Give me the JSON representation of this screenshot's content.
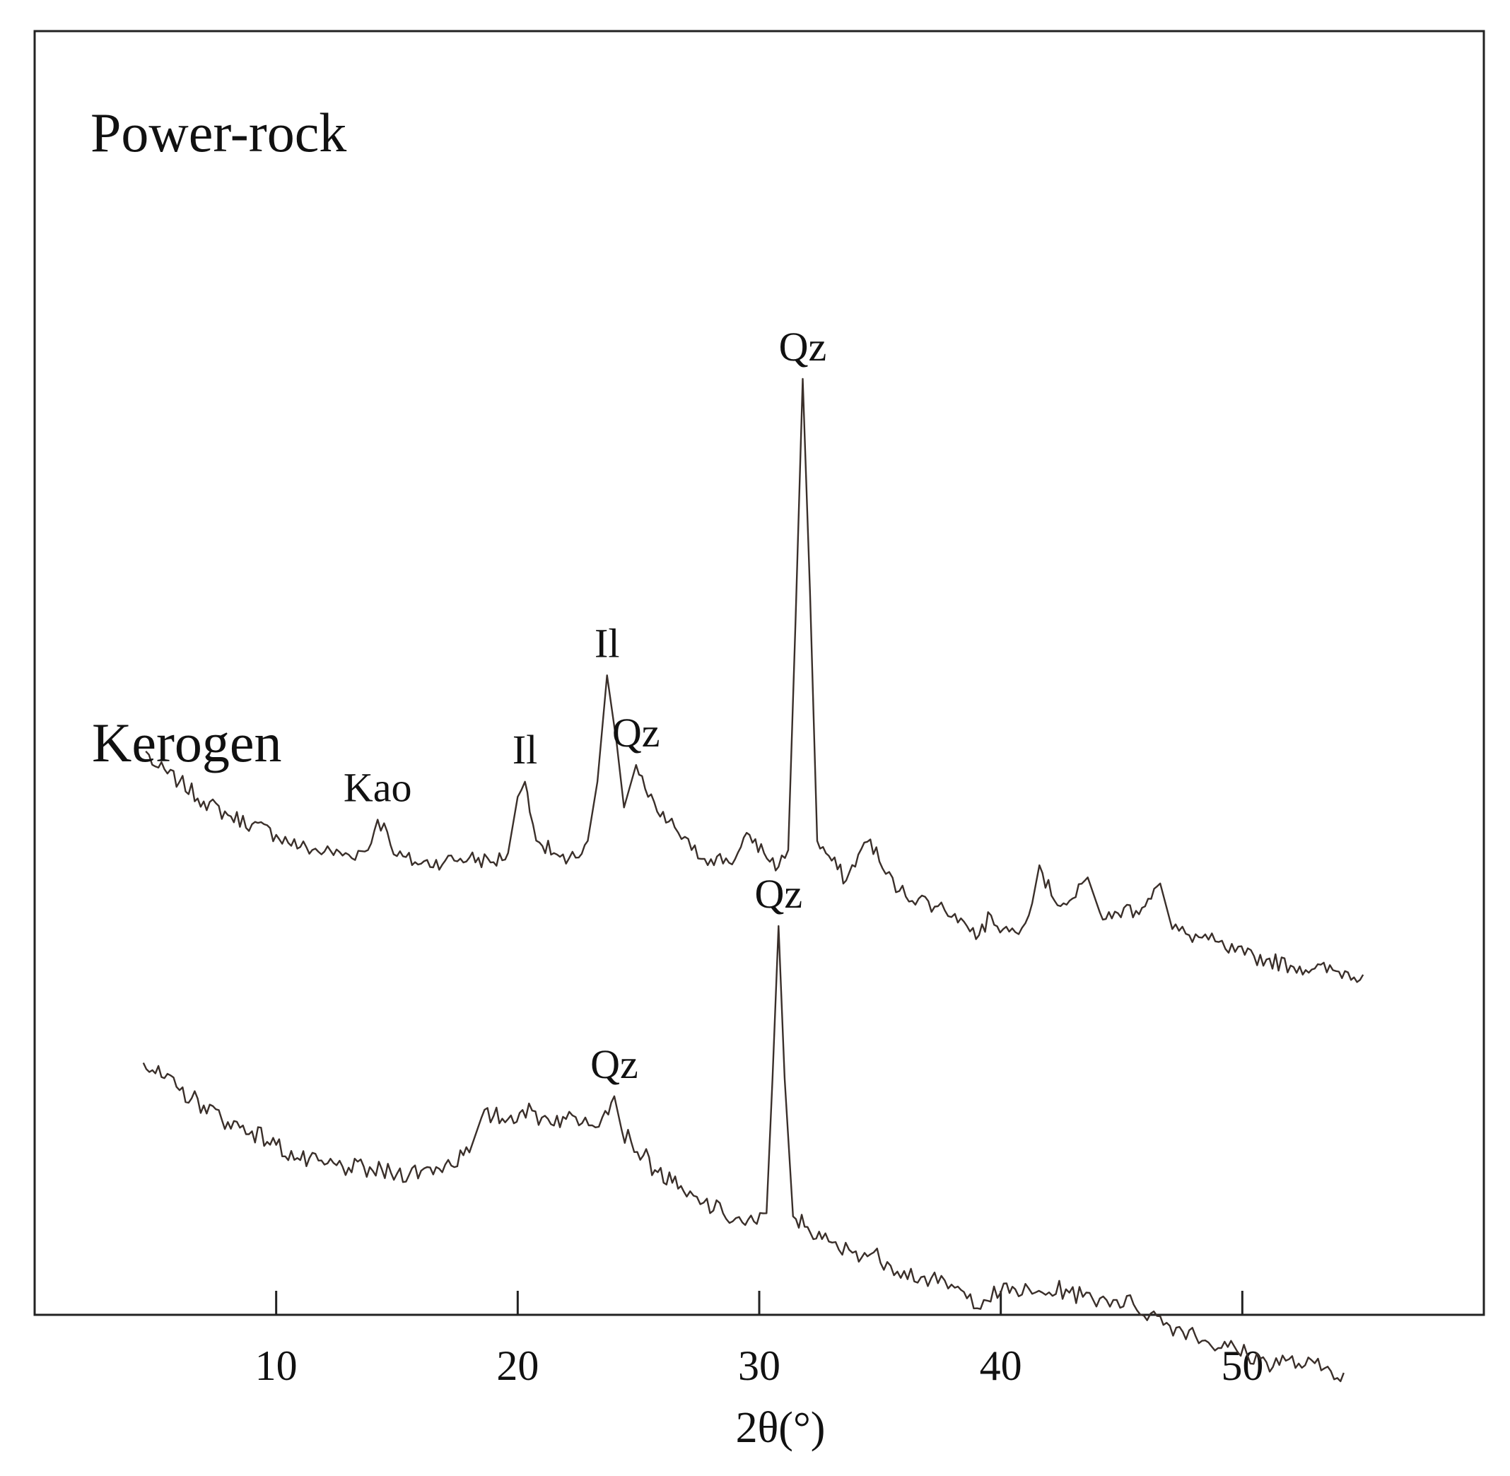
{
  "chart_data": {
    "type": "line",
    "title": "",
    "xlabel": "2θ(°)",
    "ylabel": "",
    "xlim": [
      0,
      60
    ],
    "x_ticks": [
      10,
      20,
      30,
      40,
      50
    ],
    "x_tick_labels": [
      "10",
      "20",
      "30",
      "40",
      "50"
    ],
    "y_axis_visible": false,
    "grid": false,
    "legend": "none",
    "line_color": "#3a2f2a",
    "series": [
      {
        "name": "Power-rock",
        "anchors": [
          [
            4.6,
            31.5
          ],
          [
            5.0,
            30.5
          ],
          [
            6.0,
            29.5
          ],
          [
            7.0,
            28.2
          ],
          [
            8.0,
            27.3
          ],
          [
            9.0,
            26.7
          ],
          [
            10.0,
            26.0
          ],
          [
            11.0,
            25.2
          ],
          [
            12.0,
            24.9
          ],
          [
            13.0,
            24.7
          ],
          [
            13.8,
            25.0
          ],
          [
            14.2,
            27.0
          ],
          [
            14.6,
            26.2
          ],
          [
            15.0,
            24.6
          ],
          [
            16.0,
            24.1
          ],
          [
            17.0,
            24.3
          ],
          [
            18.0,
            24.5
          ],
          [
            19.0,
            24.2
          ],
          [
            19.6,
            24.8
          ],
          [
            20.0,
            28.5
          ],
          [
            20.3,
            29.5
          ],
          [
            20.5,
            27.5
          ],
          [
            20.9,
            25.5
          ],
          [
            21.5,
            24.8
          ],
          [
            22.0,
            24.1
          ],
          [
            22.4,
            24.5
          ],
          [
            22.9,
            25.6
          ],
          [
            23.3,
            29.5
          ],
          [
            23.7,
            36.5
          ],
          [
            24.1,
            32.0
          ],
          [
            24.4,
            27.8
          ],
          [
            24.9,
            30.6
          ],
          [
            25.4,
            28.5
          ],
          [
            25.9,
            27.2
          ],
          [
            26.5,
            26.5
          ],
          [
            27.2,
            25.0
          ],
          [
            28.0,
            24.4
          ],
          [
            29.0,
            24.4
          ],
          [
            29.6,
            26.0
          ],
          [
            30.2,
            24.8
          ],
          [
            30.8,
            23.9
          ],
          [
            31.2,
            25.0
          ],
          [
            31.5,
            40.0
          ],
          [
            31.8,
            56.0
          ],
          [
            32.1,
            42.0
          ],
          [
            32.4,
            25.6
          ],
          [
            33.0,
            24.3
          ],
          [
            33.6,
            23.0
          ],
          [
            34.1,
            24.7
          ],
          [
            34.6,
            25.7
          ],
          [
            35.1,
            23.8
          ],
          [
            35.8,
            22.3
          ],
          [
            36.6,
            21.8
          ],
          [
            37.4,
            21.3
          ],
          [
            38.1,
            20.8
          ],
          [
            38.6,
            20.0
          ],
          [
            39.1,
            19.4
          ],
          [
            39.6,
            20.7
          ],
          [
            40.1,
            19.8
          ],
          [
            40.6,
            19.6
          ],
          [
            41.3,
            21.5
          ],
          [
            41.6,
            24.0
          ],
          [
            42.1,
            22.0
          ],
          [
            42.6,
            21.5
          ],
          [
            43.1,
            21.9
          ],
          [
            43.6,
            23.2
          ],
          [
            44.1,
            20.9
          ],
          [
            44.6,
            20.5
          ],
          [
            45.1,
            21.2
          ],
          [
            45.6,
            21.0
          ],
          [
            46.1,
            21.8
          ],
          [
            46.6,
            22.8
          ],
          [
            47.1,
            19.8
          ],
          [
            47.8,
            19.4
          ],
          [
            48.6,
            19.1
          ],
          [
            49.3,
            18.5
          ],
          [
            50.1,
            18.1
          ],
          [
            51.0,
            17.8
          ],
          [
            52.0,
            17.4
          ],
          [
            53.0,
            17.2
          ],
          [
            54.0,
            17.0
          ],
          [
            55.0,
            16.8
          ]
        ],
        "peak_labels": [
          {
            "x": 14.2,
            "label": "Kao"
          },
          {
            "x": 20.3,
            "label": "Il"
          },
          {
            "x": 23.7,
            "label": "Il"
          },
          {
            "x": 24.9,
            "label": "Qz"
          },
          {
            "x": 31.8,
            "label": "Qz"
          }
        ]
      },
      {
        "name": "Kerogen",
        "anchors": [
          [
            4.5,
            11.0
          ],
          [
            5.0,
            10.3
          ],
          [
            6.0,
            9.2
          ],
          [
            7.0,
            8.2
          ],
          [
            8.0,
            7.1
          ],
          [
            9.0,
            6.5
          ],
          [
            10.0,
            5.6
          ],
          [
            11.0,
            4.6
          ],
          [
            12.0,
            4.3
          ],
          [
            13.0,
            4.1
          ],
          [
            14.0,
            3.9
          ],
          [
            15.0,
            3.7
          ],
          [
            16.0,
            3.9
          ],
          [
            17.0,
            4.3
          ],
          [
            18.0,
            5.1
          ],
          [
            18.5,
            7.4
          ],
          [
            19.0,
            7.5
          ],
          [
            19.6,
            7.3
          ],
          [
            20.2,
            7.9
          ],
          [
            21.0,
            7.4
          ],
          [
            22.0,
            7.3
          ],
          [
            22.8,
            7.4
          ],
          [
            23.5,
            7.4
          ],
          [
            24.0,
            8.8
          ],
          [
            24.3,
            6.6
          ],
          [
            24.7,
            5.8
          ],
          [
            25.2,
            4.9
          ],
          [
            25.8,
            3.8
          ],
          [
            26.4,
            3.1
          ],
          [
            27.0,
            2.2
          ],
          [
            27.7,
            1.8
          ],
          [
            28.5,
            1.1
          ],
          [
            29.3,
            0.5
          ],
          [
            29.9,
            0.4
          ],
          [
            30.3,
            1.1
          ],
          [
            30.55,
            10.0
          ],
          [
            30.8,
            20.0
          ],
          [
            31.05,
            10.0
          ],
          [
            31.4,
            0.9
          ],
          [
            32.0,
            0.2
          ],
          [
            32.6,
            -0.6
          ],
          [
            33.3,
            -1.3
          ],
          [
            34.0,
            -1.4
          ],
          [
            34.6,
            -1.6
          ],
          [
            35.3,
            -2.1
          ],
          [
            36.0,
            -2.7
          ],
          [
            36.7,
            -3.1
          ],
          [
            37.4,
            -3.5
          ],
          [
            38.1,
            -3.8
          ],
          [
            38.6,
            -4.5
          ],
          [
            39.3,
            -4.6
          ],
          [
            40.0,
            -4.1
          ],
          [
            40.6,
            -3.9
          ],
          [
            41.3,
            -4.2
          ],
          [
            42.0,
            -4.1
          ],
          [
            42.7,
            -3.9
          ],
          [
            43.4,
            -4.4
          ],
          [
            44.1,
            -4.5
          ],
          [
            44.8,
            -4.6
          ],
          [
            45.5,
            -4.9
          ],
          [
            46.2,
            -5.5
          ],
          [
            47.0,
            -6.3
          ],
          [
            47.8,
            -6.6
          ],
          [
            48.6,
            -7.4
          ],
          [
            49.4,
            -7.7
          ],
          [
            50.2,
            -8.2
          ],
          [
            51.0,
            -8.7
          ],
          [
            51.8,
            -8.6
          ],
          [
            52.6,
            -8.9
          ],
          [
            53.4,
            -9.1
          ],
          [
            54.2,
            -9.4
          ]
        ],
        "peak_labels": [
          {
            "x": 24.0,
            "label": "Qz"
          },
          {
            "x": 30.8,
            "label": "Qz"
          }
        ]
      }
    ]
  }
}
